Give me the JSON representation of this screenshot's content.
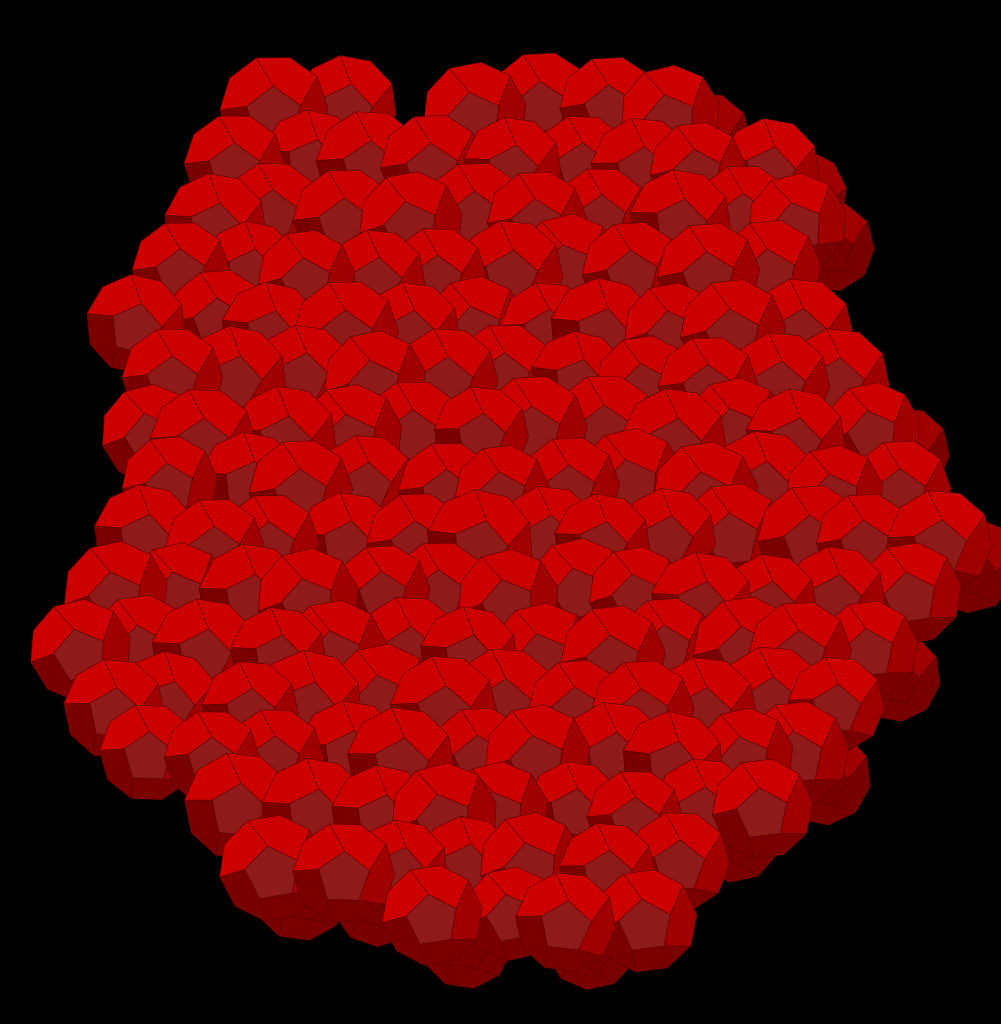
{
  "scene": {
    "background": "#000000",
    "subject": "dodecahedron-cluster",
    "colors": {
      "face_front": "#8f1a1a",
      "face_top": "#cc0000",
      "face_side": "#a00000",
      "face_dark": "#7a0000",
      "edge": "#5a0000"
    }
  }
}
